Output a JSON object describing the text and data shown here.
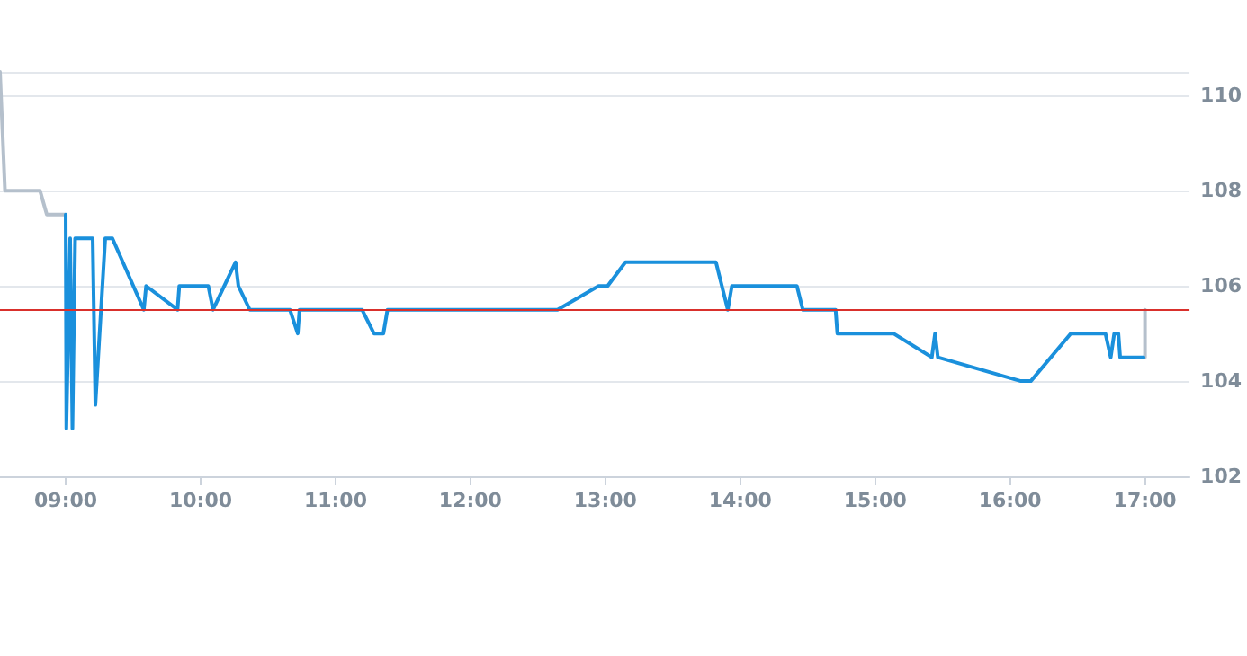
{
  "chart_data": {
    "type": "line",
    "xlim": [
      8.513,
      17.33
    ],
    "ylim": [
      102,
      110.5
    ],
    "xticks": [
      {
        "value": 9,
        "label": "09:00"
      },
      {
        "value": 10,
        "label": "10:00"
      },
      {
        "value": 11,
        "label": "11:00"
      },
      {
        "value": 12,
        "label": "12:00"
      },
      {
        "value": 13,
        "label": "13:00"
      },
      {
        "value": 14,
        "label": "14:00"
      },
      {
        "value": 15,
        "label": "15:00"
      },
      {
        "value": 16,
        "label": "16:00"
      },
      {
        "value": 17,
        "label": "17:00"
      }
    ],
    "yticks": [
      102,
      104,
      106,
      108,
      110
    ],
    "grid": "y",
    "marker": "none",
    "line_style": "solid",
    "series": [
      {
        "color": "#b5c0cc",
        "x": [
          8.513,
          8.55,
          8.81,
          8.86,
          9.0,
          13.0,
          17.0,
          17.0
        ],
        "values": [
          110.5,
          108,
          108,
          107.5,
          107.5,
          null,
          104.5,
          105.5
        ]
      },
      {
        "color": "#1a90dc",
        "x": [
          9.0,
          9.005,
          9.033,
          9.05,
          9.07,
          9.2,
          9.22,
          9.293,
          9.346,
          9.579,
          9.596,
          9.829,
          9.842,
          10.057,
          10.092,
          10.259,
          10.28,
          10.364,
          10.662,
          10.72,
          10.733,
          11.197,
          11.285,
          11.355,
          11.385,
          12.645,
          12.95,
          13.017,
          13.149,
          13.82,
          13.908,
          13.938,
          14.42,
          14.464,
          14.707,
          14.72,
          15.136,
          15.42,
          15.444,
          15.465,
          16.08,
          16.154,
          16.45,
          16.707,
          16.746,
          16.772,
          16.803,
          16.816,
          16.99
        ],
        "values": [
          107.5,
          103,
          107,
          103,
          107,
          107,
          103.5,
          107,
          107,
          105.5,
          106,
          105.5,
          106,
          106,
          105.5,
          106.5,
          106,
          105.5,
          105.5,
          105,
          105.5,
          105.5,
          105,
          105,
          105.5,
          105.5,
          106,
          106,
          106.5,
          106.5,
          105.5,
          106,
          106,
          105.5,
          105.5,
          105,
          105,
          104.5,
          105,
          104.5,
          104,
          104,
          105,
          105,
          104.5,
          105,
          105,
          104.5,
          104.5
        ]
      }
    ],
    "ref_lines": [
      {
        "axis": "y",
        "value": 105.5,
        "color": "#d9302c"
      }
    ]
  }
}
